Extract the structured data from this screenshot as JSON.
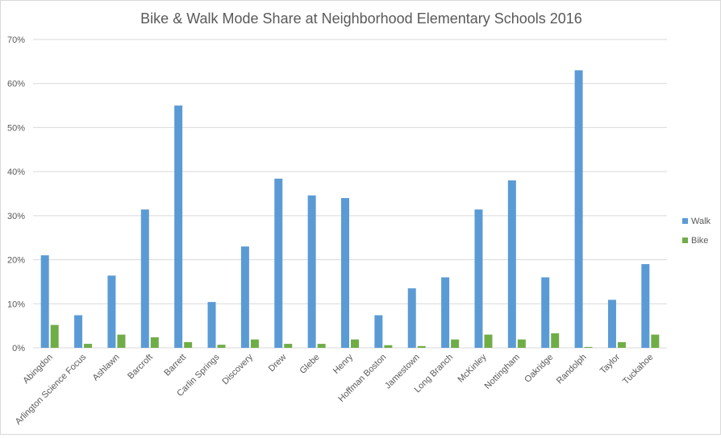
{
  "chart_data": {
    "type": "bar",
    "title": "Bike & Walk Mode Share at Neighborhood Elementary Schools 2016",
    "xlabel": "",
    "ylabel": "",
    "ylim": [
      0,
      70
    ],
    "yticks": [
      "0%",
      "10%",
      "20%",
      "30%",
      "40%",
      "50%",
      "60%",
      "70%"
    ],
    "grid": true,
    "legend_position": "right",
    "categories": [
      "Abingdon",
      "Arlington Science Focus",
      "Ashlawn",
      "Barcroft",
      "Barrett",
      "Carlin Springs",
      "Discovery",
      "Drew",
      "Glebe",
      "Henry",
      "Hoffman Boston",
      "Jamestown",
      "Long Branch",
      "McKinley",
      "Nottingham",
      "Oakridge",
      "Randolph",
      "Taylor",
      "Tuckahoe"
    ],
    "series": [
      {
        "name": "Walk",
        "color": "#5b9bd5",
        "values": [
          21,
          7.4,
          16.4,
          31.4,
          55,
          10.4,
          23,
          38.4,
          34.6,
          34,
          7.4,
          13.5,
          16,
          31.4,
          38,
          16,
          63,
          10.9,
          19
        ]
      },
      {
        "name": "Bike",
        "color": "#70ad47",
        "values": [
          5.2,
          0.9,
          3.0,
          2.4,
          1.3,
          0.7,
          1.9,
          0.9,
          0.9,
          1.9,
          0.6,
          0.4,
          1.9,
          3.0,
          1.9,
          3.3,
          0.2,
          1.3,
          3.0
        ]
      }
    ]
  }
}
